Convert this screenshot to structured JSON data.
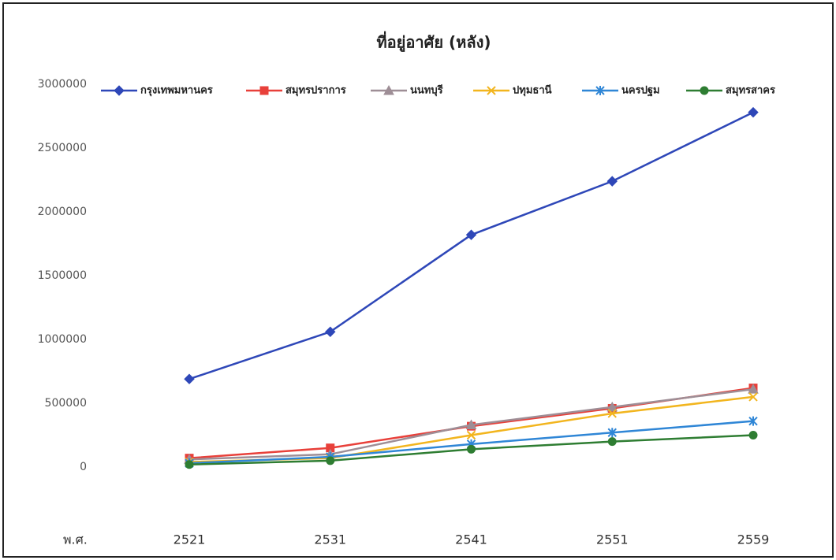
{
  "chart_data": {
    "type": "line",
    "title": "ที่อยู่อาศัย (หลัง)",
    "x_label": "พ.ศ.",
    "categories": [
      "2521",
      "2531",
      "2541",
      "2551",
      "2559"
    ],
    "series": [
      {
        "name": "กรุงเทพมหานคร",
        "color": "#2e47b8",
        "marker": "diamond",
        "values": [
          690000,
          1060000,
          1820000,
          2240000,
          2780000
        ]
      },
      {
        "name": "สมุทรปราการ",
        "color": "#e8403a",
        "marker": "square",
        "values": [
          70000,
          150000,
          320000,
          460000,
          620000
        ]
      },
      {
        "name": "นนทบุรี",
        "color": "#9e8e96",
        "marker": "triangle",
        "values": [
          60000,
          100000,
          330000,
          470000,
          610000
        ]
      },
      {
        "name": "ปทุมธานี",
        "color": "#f2b51e",
        "marker": "x",
        "values": [
          40000,
          70000,
          250000,
          420000,
          550000
        ]
      },
      {
        "name": "นครปฐม",
        "color": "#2f86d6",
        "marker": "star",
        "values": [
          30000,
          80000,
          180000,
          270000,
          360000
        ]
      },
      {
        "name": "สมุทรสาคร",
        "color": "#2e7d32",
        "marker": "circle",
        "values": [
          20000,
          50000,
          140000,
          200000,
          250000
        ]
      }
    ],
    "ylim": [
      0,
      3000000
    ],
    "yticks": [
      0,
      500000,
      1000000,
      1500000,
      2000000,
      2500000,
      3000000
    ],
    "grid": false,
    "legend": "top"
  }
}
